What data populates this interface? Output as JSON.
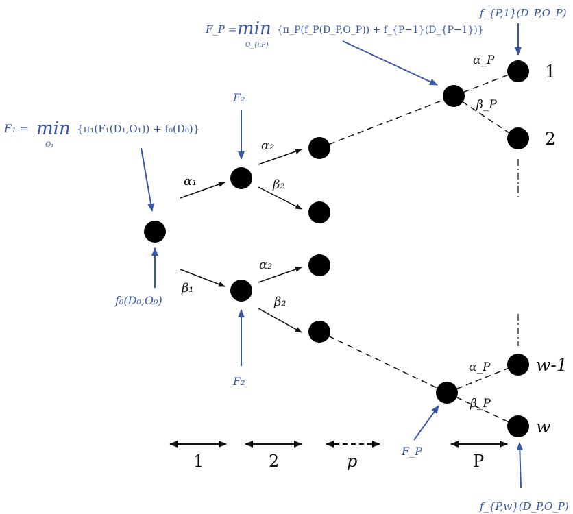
{
  "colors": {
    "annotation": "#3a56a8",
    "node": "#000000",
    "edge": "#111111"
  },
  "formulas": {
    "F1": {
      "lhs": "F₁ = ",
      "op": "min",
      "sub": "O₁",
      "body": "{π₁(F₁(D₁,O₁)) + f₀(D₀)}"
    },
    "FP": {
      "lhs": "F_P = ",
      "op": "min",
      "sub": "O_{i,P}",
      "body": "{π_P(f_P(D_P,O_P)) + f_{P−1}(D_{P−1})}"
    }
  },
  "labels": {
    "f0": "f₀(D₀,O₀)",
    "F2_top": "F₂",
    "F2_bottom": "F₂",
    "FP_bottom": "F_P",
    "fP1": "f_{P,1}(D_P,O_P)",
    "fPw": "f_{P,w}(D_P,O_P)"
  },
  "edge_labels": {
    "alpha1": "α₁",
    "beta1": "β₁",
    "alpha2_top": "α₂",
    "beta2_top": "β₂",
    "alpha2_bottom": "α₂",
    "beta2_bottom": "β₂",
    "alphaP_top": "α_P",
    "betaP_top": "β_P",
    "alphaP_bottom": "α_P",
    "betaP_bottom": "β_P"
  },
  "outcomes": {
    "o1": "1",
    "o2": "2",
    "ow1": "w-1",
    "ow": "w"
  },
  "stages": {
    "s1": "1",
    "s2": "2",
    "sp": "p",
    "sP": "P"
  }
}
